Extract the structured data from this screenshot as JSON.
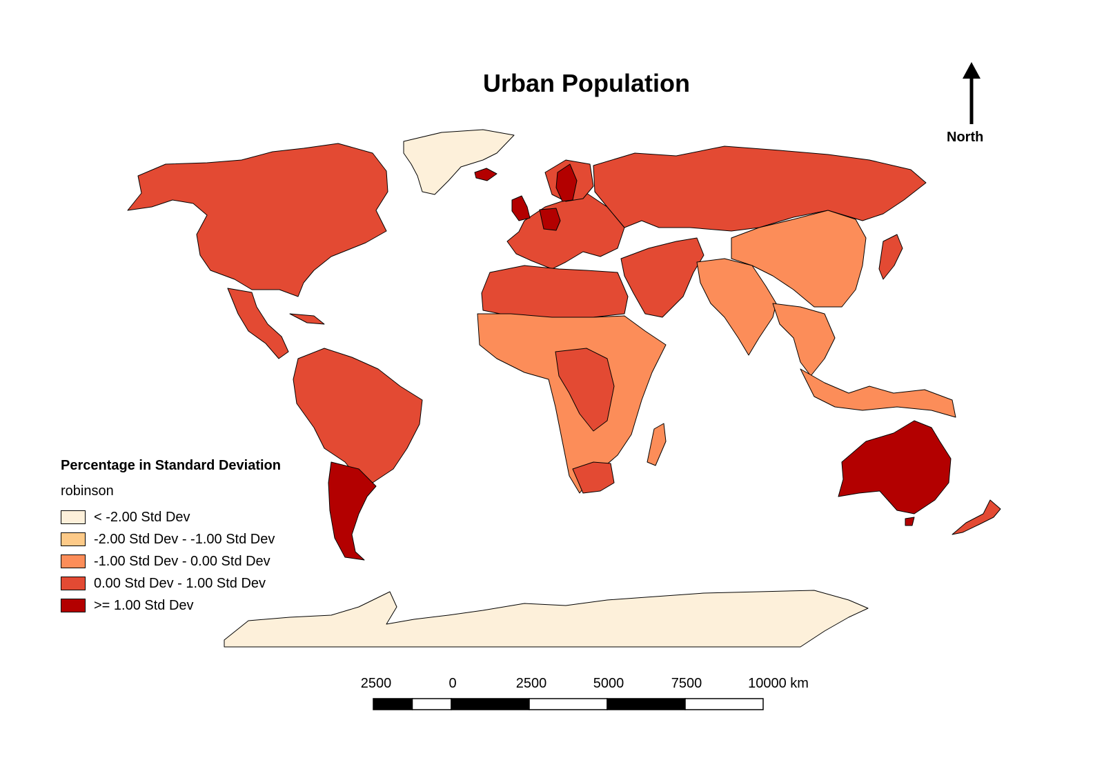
{
  "title": "Urban Population",
  "north": {
    "label": "North"
  },
  "legend": {
    "title": "Percentage in Standard Deviation",
    "subtitle": "robinson",
    "classes": [
      {
        "label": "< -2.00 Std Dev",
        "color": "#fdf0da"
      },
      {
        "label": "-2.00 Std Dev - -1.00 Std Dev",
        "color": "#fdca88"
      },
      {
        "label": "-1.00 Std Dev - 0.00 Std Dev",
        "color": "#fc8d59"
      },
      {
        "label": "0.00 Std Dev - 1.00 Std Dev",
        "color": "#e34a33"
      },
      {
        "label": ">= 1.00 Std Dev",
        "color": "#b30000"
      }
    ]
  },
  "scalebar": {
    "labels": [
      "2500",
      "0",
      "2500",
      "5000",
      "7500",
      "10000 km"
    ]
  },
  "regions": [
    {
      "name": "Greenland",
      "class": 0
    },
    {
      "name": "North America",
      "class": 3
    },
    {
      "name": "Central America",
      "class": 3
    },
    {
      "name": "South America",
      "class": 3
    },
    {
      "name": "Argentina",
      "class": 4
    },
    {
      "name": "Europe",
      "class": 3
    },
    {
      "name": "United Kingdom",
      "class": 4
    },
    {
      "name": "Germany",
      "class": 4
    },
    {
      "name": "Sweden",
      "class": 4
    },
    {
      "name": "Iceland",
      "class": 4
    },
    {
      "name": "Russia",
      "class": 3
    },
    {
      "name": "Middle East",
      "class": 3
    },
    {
      "name": "North Africa",
      "class": 3
    },
    {
      "name": "Sub-Saharan Africa",
      "class": 2
    },
    {
      "name": "Central Africa",
      "class": 3
    },
    {
      "name": "South Africa",
      "class": 3
    },
    {
      "name": "Madagascar",
      "class": 2
    },
    {
      "name": "China",
      "class": 2
    },
    {
      "name": "India",
      "class": 2
    },
    {
      "name": "Southeast Asia",
      "class": 2
    },
    {
      "name": "Japan",
      "class": 3
    },
    {
      "name": "Indonesia",
      "class": 2
    },
    {
      "name": "Australia",
      "class": 4
    },
    {
      "name": "New Zealand",
      "class": 3
    },
    {
      "name": "Antarctica",
      "class": 0
    }
  ]
}
